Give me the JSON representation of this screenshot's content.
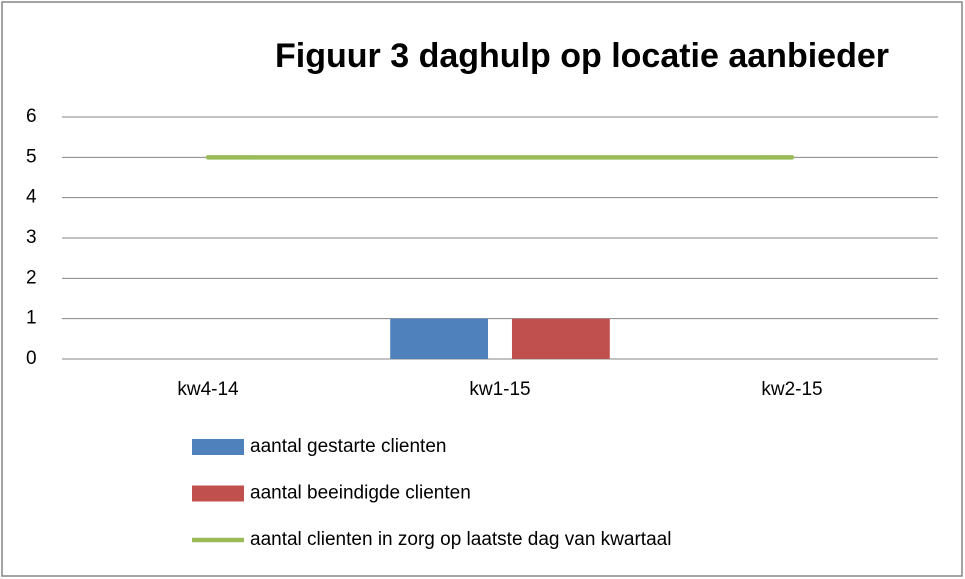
{
  "chart_data": {
    "type": "bar",
    "title": "Figuur 3 daghulp op locatie aanbieder",
    "categories": [
      "kw4-14",
      "kw1-15",
      "kw2-15"
    ],
    "series": [
      {
        "name": "aantal gestarte clienten",
        "color": "#4f81bd",
        "type": "bar",
        "values": [
          0,
          1,
          0
        ]
      },
      {
        "name": "aantal beeindigde clienten",
        "color": "#c0504d",
        "type": "bar",
        "values": [
          0,
          1,
          0
        ]
      },
      {
        "name": "aantal clienten in zorg op laatste dag van kwartaal",
        "color": "#9bbb59",
        "type": "line",
        "values": [
          5,
          5,
          5
        ]
      }
    ],
    "ylim": [
      0,
      6
    ],
    "yticks": [
      0,
      1,
      2,
      3,
      4,
      5,
      6
    ],
    "grid": true,
    "legend": "bottom"
  }
}
